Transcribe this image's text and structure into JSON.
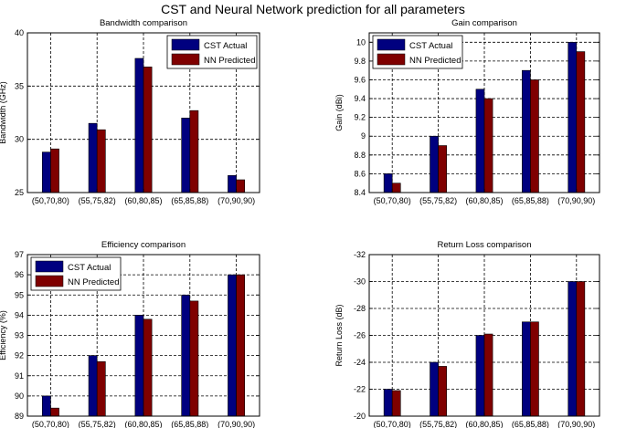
{
  "figure": {
    "suptitle": "CST and Neural Network prediction for all parameters"
  },
  "colors": {
    "actual": "#00007f",
    "predicted": "#7f0000",
    "grid": "#000000"
  },
  "chart_data": [
    {
      "type": "bar",
      "title": "Bandwidth comparison",
      "xlabel": "",
      "ylabel": "Bandwidth (GHz)",
      "categories": [
        "(50,70,80)",
        "(55,75,82)",
        "(60,80,85)",
        "(65,85,88)",
        "(70,90,90)"
      ],
      "ylim": [
        25,
        40
      ],
      "yticks": [
        25,
        30,
        35,
        40
      ],
      "ytick_labels": [
        "25",
        "30",
        "35",
        "40"
      ],
      "reverse": false,
      "grid": true,
      "legend": "top-right",
      "series": [
        {
          "name": "CST Actual",
          "values": [
            28.8,
            31.5,
            37.6,
            32.0,
            26.6
          ]
        },
        {
          "name": "NN Predicted",
          "values": [
            29.1,
            30.9,
            36.8,
            32.7,
            26.2
          ]
        }
      ]
    },
    {
      "type": "bar",
      "title": "Gain comparison",
      "xlabel": "",
      "ylabel": "Gain (dBi)",
      "categories": [
        "(50,70,80)",
        "(55,75,82)",
        "(60,80,85)",
        "(65,85,88)",
        "(70,90,90)"
      ],
      "ylim": [
        8.4,
        10.1
      ],
      "yticks": [
        8.4,
        8.6,
        8.8,
        9.0,
        9.2,
        9.4,
        9.6,
        9.8,
        10.0
      ],
      "ytick_labels": [
        "8.4",
        "8.6",
        "8.8",
        "9",
        "9.2",
        "9.4",
        "9.6",
        "9.8",
        "10"
      ],
      "reverse": false,
      "grid": true,
      "legend": "top-left",
      "series": [
        {
          "name": "CST Actual",
          "values": [
            8.6,
            9.0,
            9.5,
            9.7,
            10.0
          ]
        },
        {
          "name": "NN Predicted",
          "values": [
            8.5,
            8.9,
            9.4,
            9.6,
            9.9
          ]
        }
      ]
    },
    {
      "type": "bar",
      "title": "Efficiency comparison",
      "xlabel": "",
      "ylabel": "Efficiency (%)",
      "categories": [
        "(50,70,80)",
        "(55,75,82)",
        "(60,80,85)",
        "(65,85,88)",
        "(70,90,90)"
      ],
      "ylim": [
        89,
        97
      ],
      "yticks": [
        89,
        90,
        91,
        92,
        93,
        94,
        95,
        96,
        97
      ],
      "ytick_labels": [
        "89",
        "90",
        "91",
        "92",
        "93",
        "94",
        "95",
        "96",
        "97"
      ],
      "reverse": false,
      "grid": true,
      "legend": "top-left",
      "series": [
        {
          "name": "CST Actual",
          "values": [
            90.0,
            92.0,
            94.0,
            95.0,
            96.0
          ]
        },
        {
          "name": "NN Predicted",
          "values": [
            89.4,
            91.7,
            93.8,
            94.7,
            96.0
          ]
        }
      ]
    },
    {
      "type": "bar",
      "title": "Return Loss comparison",
      "xlabel": "",
      "ylabel": "Return Loss (dB)",
      "categories": [
        "(50,70,80)",
        "(55,75,82)",
        "(60,80,85)",
        "(65,85,88)",
        "(70,90,90)"
      ],
      "ylim": [
        -32,
        -20
      ],
      "yticks": [
        -32,
        -30,
        -28,
        -26,
        -24,
        -22,
        -20
      ],
      "ytick_labels": [
        "-32",
        "-30",
        "-28",
        "-26",
        "-24",
        "-22",
        "-20"
      ],
      "reverse": true,
      "grid": true,
      "legend": "none",
      "series": [
        {
          "name": "CST Actual",
          "values": [
            -22.0,
            -24.0,
            -26.0,
            -27.0,
            -30.0
          ]
        },
        {
          "name": "NN Predicted",
          "values": [
            -21.9,
            -23.7,
            -26.1,
            -27.0,
            -30.0
          ]
        }
      ]
    }
  ]
}
